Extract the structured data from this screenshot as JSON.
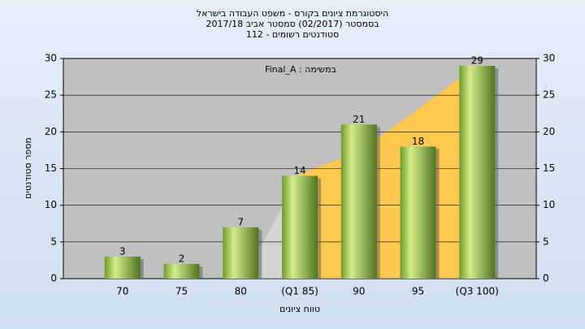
{
  "chart_data": {
    "type": "bar",
    "title": [
      "היסטוגרמת ציונים בקורס - משפט העבודה בישראל",
      "בסמסטר  (02/2017)  סמסטר אביב 2017/18",
      "סטודנטים רשומים - 112"
    ],
    "annotation": "במשימה : Final_A",
    "x_label": "טווח ציונים",
    "y_label": "מספר סטודנטים",
    "categories": [
      "70",
      "75",
      "80",
      "(Q1 85)",
      "90",
      "95",
      "(Q3 100)"
    ],
    "values": [
      3,
      2,
      7,
      14,
      21,
      18,
      29
    ],
    "color": "#8db33a",
    "ylim": [
      0,
      30
    ],
    "yticks": [
      0,
      5,
      10,
      15,
      20,
      25,
      30
    ],
    "y2lim": [
      0,
      30
    ],
    "y2ticks": [
      0,
      5,
      10,
      15,
      20,
      25,
      30
    ],
    "grid": true
  }
}
